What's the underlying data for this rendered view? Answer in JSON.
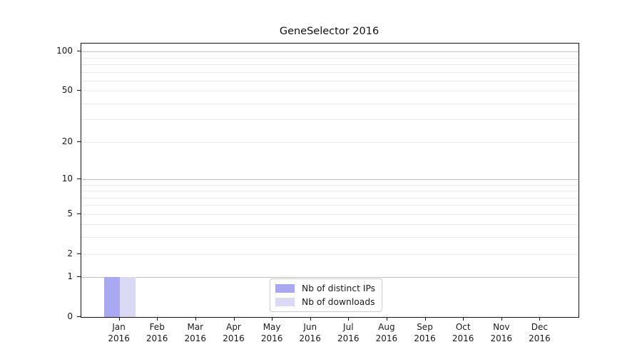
{
  "title": "GeneSelector 2016",
  "chart_data": {
    "type": "bar",
    "title": "GeneSelector 2016",
    "categories": [
      {
        "month": "Jan",
        "year": "2016"
      },
      {
        "month": "Feb",
        "year": "2016"
      },
      {
        "month": "Mar",
        "year": "2016"
      },
      {
        "month": "Apr",
        "year": "2016"
      },
      {
        "month": "May",
        "year": "2016"
      },
      {
        "month": "Jun",
        "year": "2016"
      },
      {
        "month": "Jul",
        "year": "2016"
      },
      {
        "month": "Aug",
        "year": "2016"
      },
      {
        "month": "Sep",
        "year": "2016"
      },
      {
        "month": "Oct",
        "year": "2016"
      },
      {
        "month": "Nov",
        "year": "2016"
      },
      {
        "month": "Dec",
        "year": "2016"
      }
    ],
    "series": [
      {
        "name": "Nb of distinct IPs",
        "color": "#a9a9f3",
        "values": [
          1,
          0,
          0,
          0,
          0,
          0,
          0,
          0,
          0,
          0,
          0,
          0
        ]
      },
      {
        "name": "Nb of downloads",
        "color": "#dadaf5",
        "values": [
          1,
          0,
          0,
          0,
          0,
          0,
          0,
          0,
          0,
          0,
          0,
          0
        ]
      }
    ],
    "yscale": "log1p",
    "ylim": [
      0,
      115
    ],
    "yticks": [
      0,
      1,
      2,
      5,
      10,
      20,
      50,
      100
    ],
    "major_gridlines": [
      1,
      10,
      100
    ],
    "minor_gridlines": [
      2,
      3,
      4,
      5,
      6,
      7,
      8,
      9,
      20,
      30,
      40,
      50,
      60,
      70,
      80,
      90
    ],
    "grid": true,
    "legend_position": "lower center",
    "xlabel": "",
    "ylabel": ""
  },
  "colors": {
    "frame": "#141414",
    "grid_major": "#c3c3c3",
    "grid_minor": "#ebebeb",
    "text": "#1a1a1a",
    "background": "#ffffff"
  }
}
